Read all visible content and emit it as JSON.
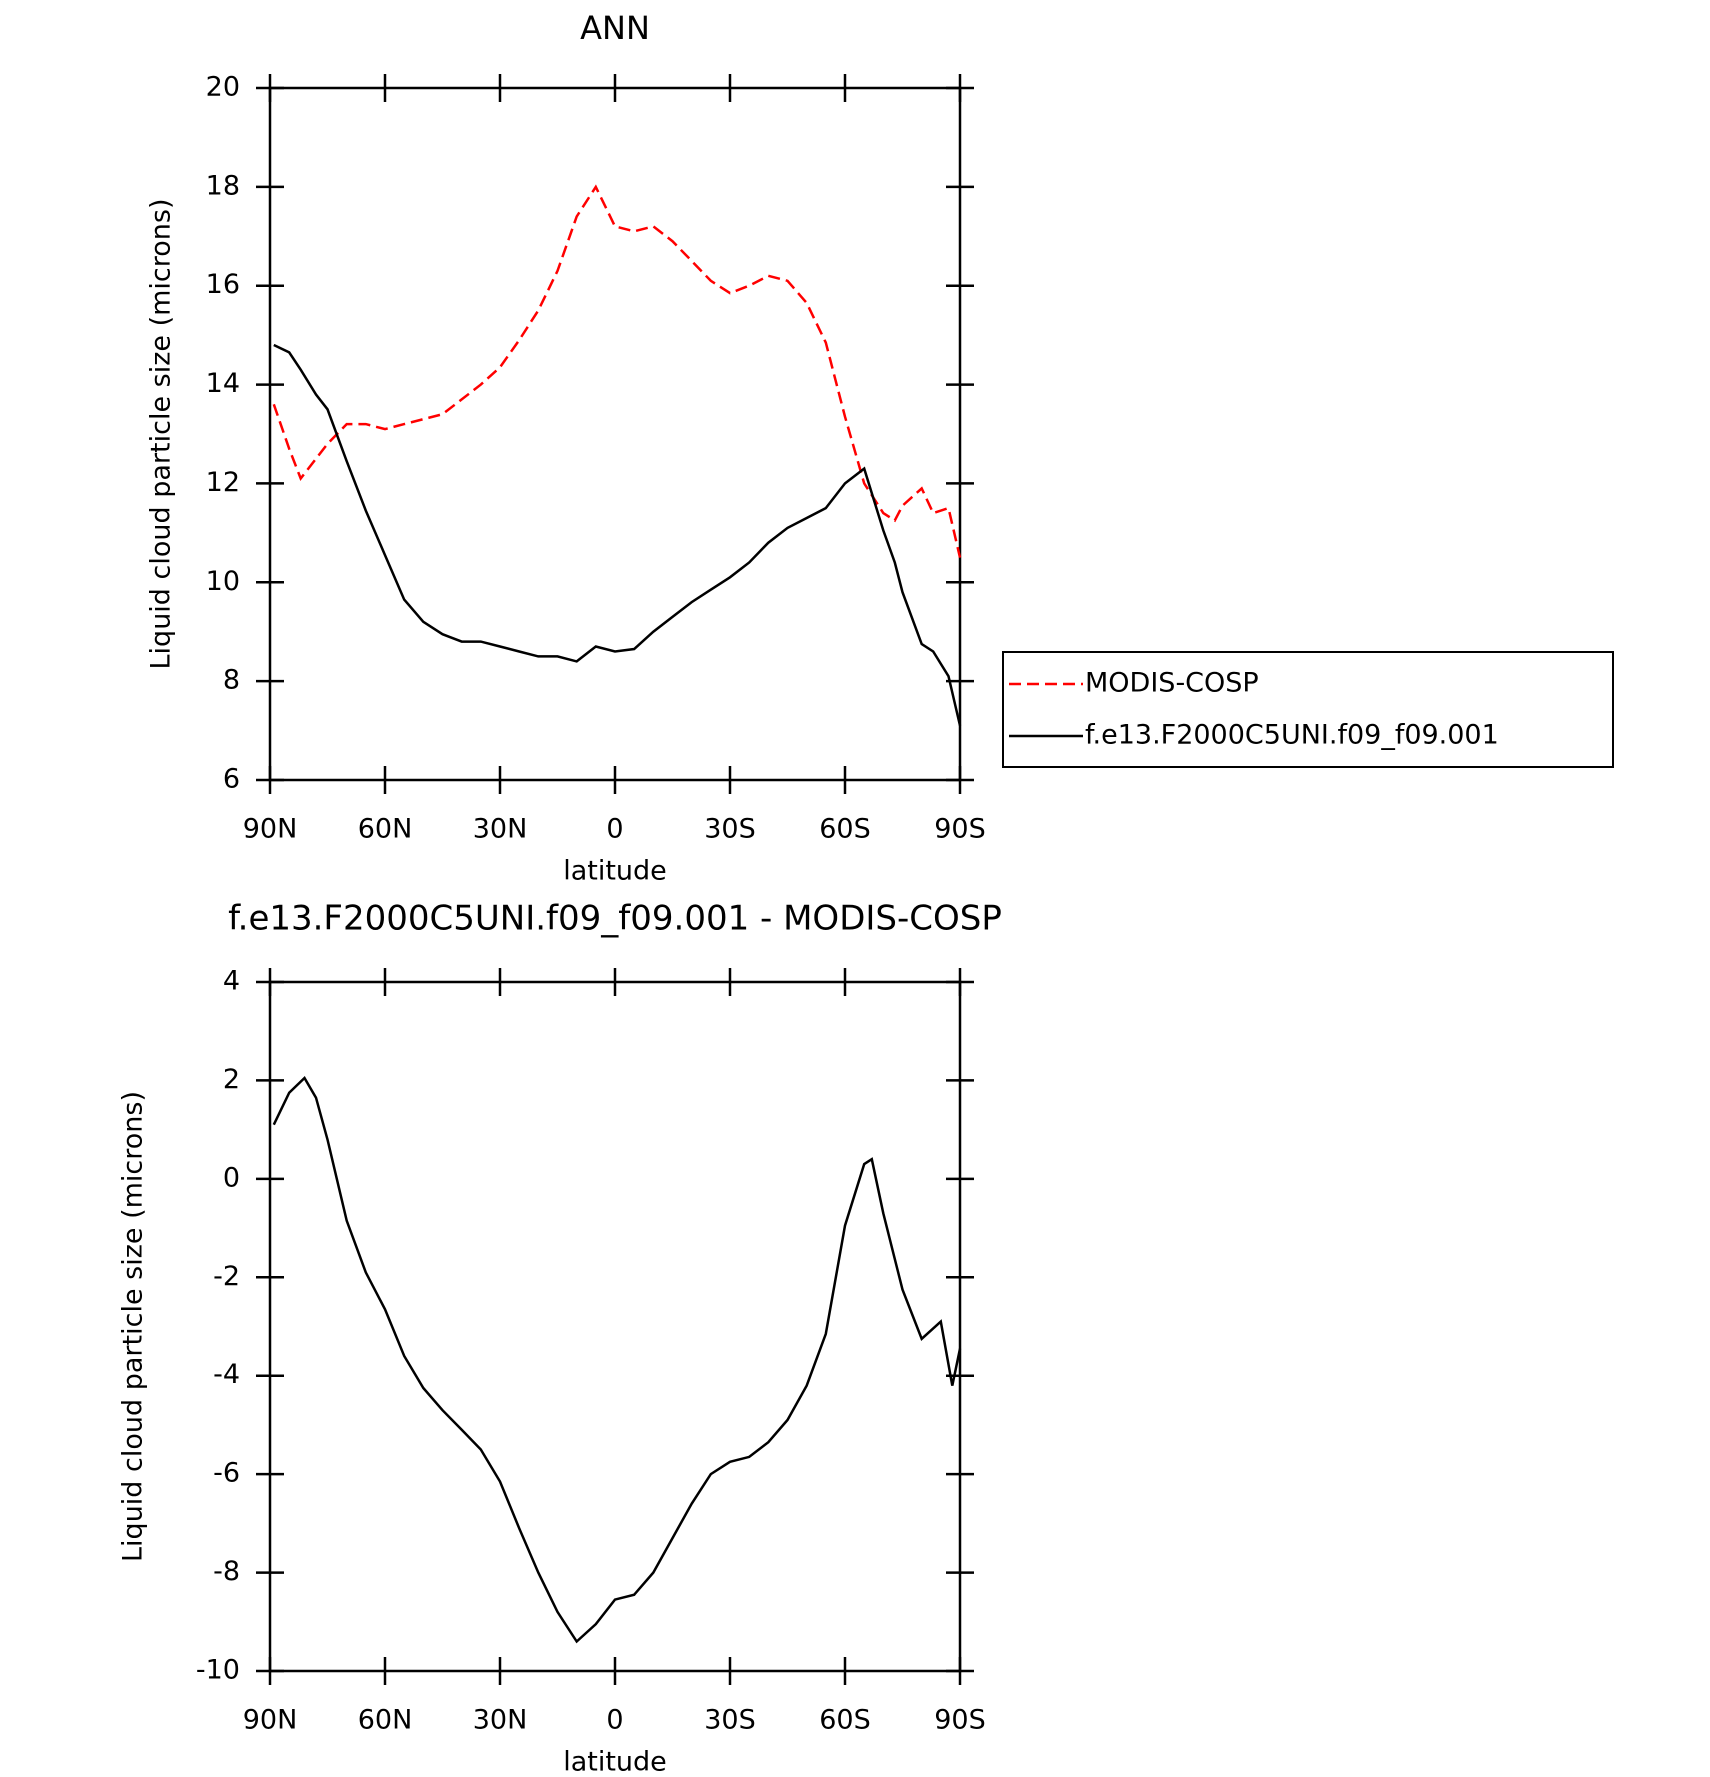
{
  "chart_data": [
    {
      "type": "line",
      "title": "ANN",
      "x_label": "latitude",
      "y_label": "Liquid cloud particle size (microns)",
      "x": [
        89,
        85,
        82,
        78,
        75,
        70,
        65,
        60,
        55,
        50,
        45,
        40,
        35,
        30,
        25,
        20,
        15,
        10,
        5,
        0,
        -5,
        -10,
        -15,
        -20,
        -25,
        -30,
        -35,
        -40,
        -45,
        -50,
        -55,
        -60,
        -65,
        -70,
        -73,
        -75,
        -80,
        -83,
        -87,
        -90
      ],
      "series": [
        {
          "name": "MODIS-COSP",
          "color": "#ff0000",
          "line_style": "dashed",
          "values": [
            13.6,
            12.7,
            12.1,
            12.5,
            12.8,
            13.2,
            13.2,
            13.1,
            13.2,
            13.3,
            13.4,
            13.7,
            14.0,
            14.35,
            14.9,
            15.5,
            16.3,
            17.4,
            18.0,
            17.2,
            17.1,
            17.2,
            16.9,
            16.5,
            16.1,
            15.85,
            16.0,
            16.2,
            16.1,
            15.65,
            14.85,
            13.35,
            12.0,
            11.4,
            11.25,
            11.55,
            11.9,
            11.4,
            11.5,
            10.5
          ]
        },
        {
          "name": "f.e13.F2000C5UNI.f09_f09.001",
          "color": "#000000",
          "line_style": "solid",
          "values": [
            14.8,
            14.65,
            14.3,
            13.8,
            13.5,
            12.45,
            11.45,
            10.55,
            9.65,
            9.2,
            8.95,
            8.8,
            8.8,
            8.7,
            8.6,
            8.5,
            8.5,
            8.4,
            8.7,
            8.6,
            8.65,
            9.0,
            9.3,
            9.6,
            9.85,
            10.1,
            10.4,
            10.8,
            11.1,
            11.3,
            11.5,
            12.0,
            12.3,
            11.05,
            10.4,
            9.8,
            8.75,
            8.6,
            8.1,
            7.1
          ]
        }
      ],
      "xlim": [
        90,
        -90
      ],
      "xticks": [
        {
          "value": 90,
          "label": "90N"
        },
        {
          "value": 60,
          "label": "60N"
        },
        {
          "value": 30,
          "label": "30N"
        },
        0,
        {
          "value": -30,
          "label": "30S"
        },
        {
          "value": -60,
          "label": "60S"
        },
        {
          "value": -90,
          "label": "90S"
        }
      ],
      "ylim": [
        6,
        20
      ],
      "yticks": [
        6,
        8,
        10,
        12,
        14,
        16,
        18,
        20
      ],
      "legend": "outside-right"
    },
    {
      "type": "line",
      "title": "f.e13.F2000C5UNI.f09_f09.001 - MODIS-COSP",
      "x_label": "latitude",
      "y_label": "Liquid cloud particle size (microns)",
      "x": [
        89,
        85,
        81,
        78,
        75,
        70,
        65,
        60,
        55,
        50,
        45,
        40,
        35,
        30,
        25,
        20,
        15,
        10,
        5,
        0,
        -5,
        -10,
        -15,
        -20,
        -25,
        -30,
        -35,
        -40,
        -45,
        -50,
        -55,
        -60,
        -65,
        -67,
        -70,
        -75,
        -80,
        -85,
        -88,
        -90
      ],
      "values": [
        1.1,
        1.75,
        2.05,
        1.65,
        0.8,
        -0.85,
        -1.9,
        -2.65,
        -3.6,
        -4.25,
        -4.7,
        -5.1,
        -5.5,
        -6.15,
        -7.1,
        -8.0,
        -8.8,
        -9.4,
        -9.05,
        -8.55,
        -8.45,
        -8.0,
        -7.3,
        -6.6,
        -6.0,
        -5.75,
        -5.65,
        -5.35,
        -4.9,
        -4.2,
        -3.15,
        -0.95,
        0.3,
        0.4,
        -0.7,
        -2.25,
        -3.25,
        -2.9,
        -4.2,
        -3.45
      ],
      "color": "#000000",
      "xlim": [
        90,
        -90
      ],
      "xticks": [
        {
          "value": 90,
          "label": "90N"
        },
        {
          "value": 60,
          "label": "60N"
        },
        {
          "value": 30,
          "label": "30N"
        },
        0,
        {
          "value": -30,
          "label": "30S"
        },
        {
          "value": -60,
          "label": "60S"
        },
        {
          "value": -90,
          "label": "90S"
        }
      ],
      "ylim": [
        -10,
        4
      ],
      "yticks": [
        -10,
        -8,
        -6,
        -4,
        -2,
        0,
        2,
        4
      ]
    }
  ]
}
